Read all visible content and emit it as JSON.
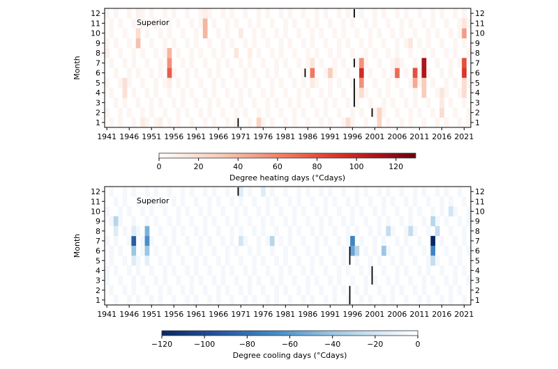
{
  "chart_data": [
    {
      "type": "heatmap",
      "title": "",
      "annotation": "Superior",
      "xlabel": "",
      "ylabel": "Month",
      "x_ticks": [
        "1941",
        "1946",
        "1951",
        "1956",
        "1961",
        "1966",
        "1971",
        "1976",
        "1981",
        "1986",
        "1991",
        "1996",
        "2001",
        "2006",
        "2011",
        "2016",
        "2021"
      ],
      "y_ticks": [
        "1",
        "2",
        "3",
        "4",
        "5",
        "6",
        "7",
        "8",
        "9",
        "10",
        "11",
        "12"
      ],
      "year_range": [
        1941,
        2022
      ],
      "colorbar": {
        "label": "Degree heating days (°Cdays)",
        "ticks": [
          "0",
          "20",
          "40",
          "60",
          "80",
          "100",
          "120"
        ],
        "range": [
          0,
          130
        ],
        "colormap": "Reds"
      },
      "cells": [
        {
          "year": 1948,
          "month": 9,
          "value": 35
        },
        {
          "year": 1948,
          "month": 10,
          "value": 20
        },
        {
          "year": 1948,
          "month": 12,
          "value": 8
        },
        {
          "year": 1955,
          "month": 6,
          "value": 75
        },
        {
          "year": 1955,
          "month": 7,
          "value": 55
        },
        {
          "year": 1955,
          "month": 8,
          "value": 40
        },
        {
          "year": 1955,
          "month": 5,
          "value": 10
        },
        {
          "year": 1963,
          "month": 10,
          "value": 40
        },
        {
          "year": 1963,
          "month": 11,
          "value": 40
        },
        {
          "year": 1963,
          "month": 12,
          "value": 10
        },
        {
          "year": 1945,
          "month": 4,
          "value": 18
        },
        {
          "year": 1945,
          "month": 5,
          "value": 18
        },
        {
          "year": 1941,
          "month": 8,
          "value": 10
        },
        {
          "year": 1949,
          "month": 1,
          "value": 12
        },
        {
          "year": 1953,
          "month": 1,
          "value": 10
        },
        {
          "year": 1975,
          "month": 1,
          "value": 25
        },
        {
          "year": 1970,
          "month": 8,
          "value": 15
        },
        {
          "year": 1971,
          "month": 10,
          "value": 12
        },
        {
          "year": 1973,
          "month": 8,
          "value": 10
        },
        {
          "year": 1987,
          "month": 6,
          "value": 65
        },
        {
          "year": 1987,
          "month": 7,
          "value": 15
        },
        {
          "year": 1987,
          "month": 5,
          "value": 12
        },
        {
          "year": 1991,
          "month": 6,
          "value": 30
        },
        {
          "year": 1995,
          "month": 1,
          "value": 20
        },
        {
          "year": 1998,
          "month": 6,
          "value": 95
        },
        {
          "year": 1998,
          "month": 7,
          "value": 55
        },
        {
          "year": 1998,
          "month": 5,
          "value": 55
        },
        {
          "year": 1998,
          "month": 4,
          "value": 20
        },
        {
          "year": 2002,
          "month": 1,
          "value": 25
        },
        {
          "year": 2002,
          "month": 2,
          "value": 25
        },
        {
          "year": 2006,
          "month": 6,
          "value": 70
        },
        {
          "year": 2006,
          "month": 7,
          "value": 12
        },
        {
          "year": 2010,
          "month": 6,
          "value": 80
        },
        {
          "year": 2010,
          "month": 5,
          "value": 45
        },
        {
          "year": 2009,
          "month": 9,
          "value": 15
        },
        {
          "year": 2012,
          "month": 6,
          "value": 110
        },
        {
          "year": 2012,
          "month": 7,
          "value": 110
        },
        {
          "year": 2012,
          "month": 5,
          "value": 30
        },
        {
          "year": 2012,
          "month": 4,
          "value": 30
        },
        {
          "year": 2016,
          "month": 2,
          "value": 20
        },
        {
          "year": 2016,
          "month": 4,
          "value": 15
        },
        {
          "year": 2016,
          "month": 3,
          "value": 12
        },
        {
          "year": 2021,
          "month": 6,
          "value": 90
        },
        {
          "year": 2021,
          "month": 7,
          "value": 80
        },
        {
          "year": 2021,
          "month": 10,
          "value": 50
        },
        {
          "year": 2021,
          "month": 11,
          "value": 15
        },
        {
          "year": 2021,
          "month": 5,
          "value": 20
        },
        {
          "year": 2021,
          "month": 4,
          "value": 20
        }
      ],
      "missing_markers": [
        {
          "year": 1970,
          "months": [
            1,
            1
          ]
        },
        {
          "year": 1985,
          "months": [
            6,
            6
          ]
        },
        {
          "year": 1996,
          "months": [
            12,
            12
          ]
        },
        {
          "year": 1996,
          "months": [
            7,
            7
          ]
        },
        {
          "year": 1996,
          "months": [
            3,
            5
          ]
        },
        {
          "year": 2000,
          "months": [
            2,
            2
          ]
        }
      ]
    },
    {
      "type": "heatmap",
      "title": "",
      "annotation": "Superior",
      "xlabel": "",
      "ylabel": "Month",
      "x_ticks": [
        "1941",
        "1946",
        "1951",
        "1956",
        "1961",
        "1966",
        "1971",
        "1976",
        "1981",
        "1986",
        "1991",
        "1996",
        "2001",
        "2006",
        "2011",
        "2016",
        "2021"
      ],
      "y_ticks": [
        "1",
        "2",
        "3",
        "4",
        "5",
        "6",
        "7",
        "8",
        "9",
        "10",
        "11",
        "12"
      ],
      "year_range": [
        1941,
        2022
      ],
      "colorbar": {
        "label": "Degree cooling days (°Cdays)",
        "ticks": [
          "−120",
          "−100",
          "−80",
          "−60",
          "−40",
          "−20",
          "0"
        ],
        "range": [
          -120,
          0
        ],
        "colormap": "Blues_r"
      },
      "cells": [
        {
          "year": 1947,
          "month": 7,
          "value": -90
        },
        {
          "year": 1947,
          "month": 6,
          "value": -40
        },
        {
          "year": 1947,
          "month": 5,
          "value": -15
        },
        {
          "year": 1947,
          "month": 8,
          "value": -15
        },
        {
          "year": 1950,
          "month": 7,
          "value": -65
        },
        {
          "year": 1950,
          "month": 8,
          "value": -50
        },
        {
          "year": 1950,
          "month": 6,
          "value": -40
        },
        {
          "year": 1950,
          "month": 5,
          "value": -12
        },
        {
          "year": 1943,
          "month": 9,
          "value": -30
        },
        {
          "year": 1943,
          "month": 8,
          "value": -15
        },
        {
          "year": 1971,
          "month": 7,
          "value": -20
        },
        {
          "year": 1971,
          "month": 12,
          "value": -15
        },
        {
          "year": 1976,
          "month": 12,
          "value": -15
        },
        {
          "year": 1978,
          "month": 7,
          "value": -30
        },
        {
          "year": 1996,
          "month": 7,
          "value": -70
        },
        {
          "year": 1996,
          "month": 6,
          "value": -55
        },
        {
          "year": 1997,
          "month": 6,
          "value": -30
        },
        {
          "year": 2003,
          "month": 6,
          "value": -40
        },
        {
          "year": 2004,
          "month": 8,
          "value": -25
        },
        {
          "year": 2009,
          "month": 8,
          "value": -25
        },
        {
          "year": 2014,
          "month": 7,
          "value": -120
        },
        {
          "year": 2014,
          "month": 6,
          "value": -70
        },
        {
          "year": 2014,
          "month": 9,
          "value": -30
        },
        {
          "year": 2014,
          "month": 5,
          "value": -25
        },
        {
          "year": 2015,
          "month": 8,
          "value": -25
        },
        {
          "year": 2018,
          "month": 10,
          "value": -20
        }
      ],
      "missing_markers": [
        {
          "year": 1970,
          "months": [
            12,
            12
          ]
        },
        {
          "year": 1995,
          "months": [
            5,
            6
          ]
        },
        {
          "year": 1995,
          "months": [
            1,
            2
          ]
        },
        {
          "year": 2000,
          "months": [
            3,
            4
          ]
        }
      ]
    }
  ]
}
